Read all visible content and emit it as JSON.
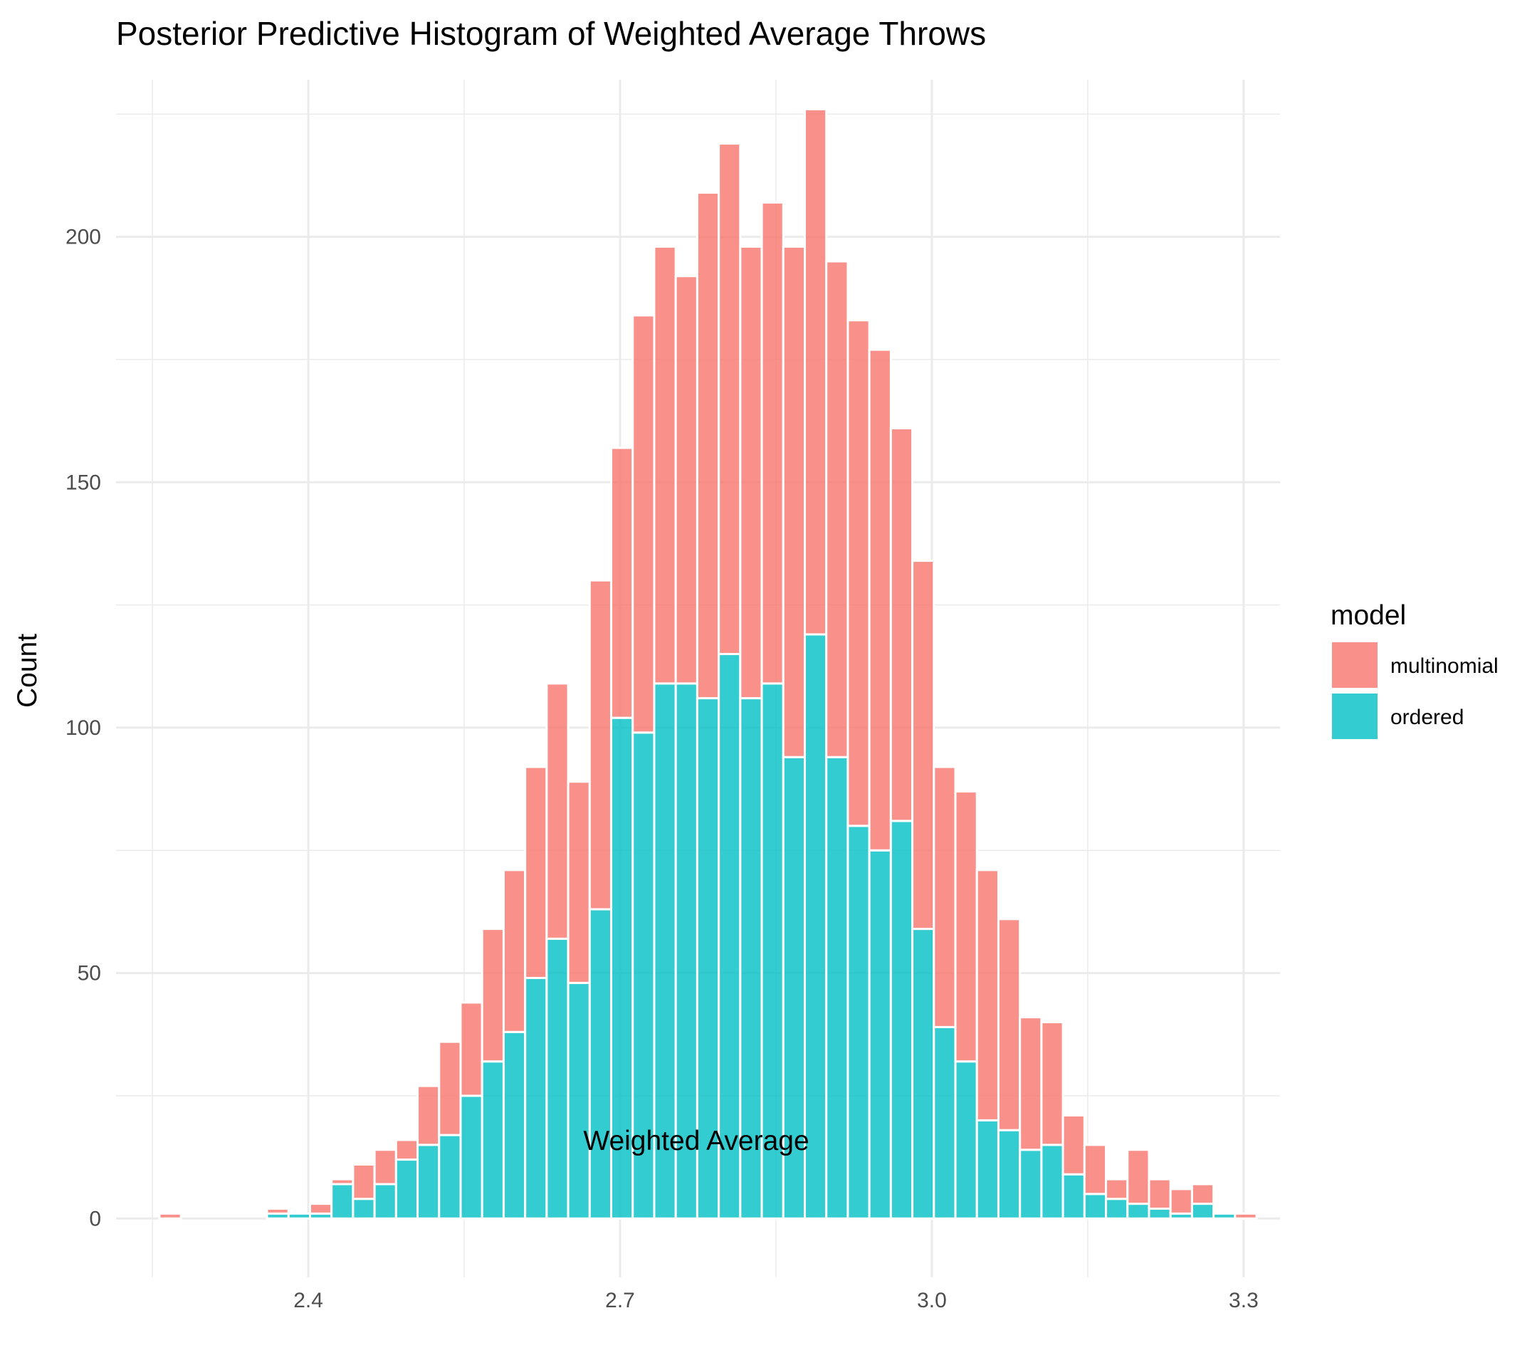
{
  "chart_data": {
    "type": "bar",
    "title": "Posterior Predictive Histogram of Weighted Average Throws",
    "xlabel": "Weighted Average",
    "ylabel": "Count",
    "xlim": [
      2.215,
      3.335
    ],
    "ylim": [
      -12,
      232
    ],
    "x_ticks": [
      2.4,
      2.7,
      3.0,
      3.3
    ],
    "x_tick_labels": [
      "2.4",
      "2.7",
      "3.0",
      "3.3"
    ],
    "y_ticks": [
      0,
      50,
      100,
      150,
      200
    ],
    "y_tick_labels": [
      "0",
      "50",
      "100",
      "150",
      "200"
    ],
    "grid": true,
    "bin_width": 0.0207,
    "legend": {
      "title": "model",
      "position": "right"
    },
    "colors": {
      "multinomial": "#f8766d",
      "ordered": "#00bfc4",
      "bar_outline": "#ffffff",
      "grid": "#ebebeb"
    },
    "stacked": true,
    "x": [
      2.2671,
      2.2878,
      2.3085,
      2.3292,
      2.3499,
      2.3706,
      2.3913,
      2.412,
      2.4327,
      2.4534,
      2.4741,
      2.4948,
      2.5155,
      2.5362,
      2.5569,
      2.5776,
      2.5983,
      2.619,
      2.6397,
      2.6604,
      2.6811,
      2.7018,
      2.7225,
      2.7432,
      2.7639,
      2.7846,
      2.8053,
      2.826,
      2.8467,
      2.8674,
      2.8881,
      2.9088,
      2.9295,
      2.9502,
      2.9709,
      2.9916,
      3.0123,
      3.033,
      3.0537,
      3.0744,
      3.0951,
      3.1158,
      3.1365,
      3.1572,
      3.1779,
      3.1986,
      3.2193,
      3.24,
      3.2607,
      3.2814,
      3.3021
    ],
    "series": [
      {
        "name": "multinomial",
        "values": [
          1,
          0,
          0,
          0,
          0,
          1,
          0,
          2,
          1,
          7,
          7,
          4,
          12,
          19,
          19,
          27,
          33,
          43,
          52,
          41,
          67,
          55,
          85,
          89,
          83,
          103,
          104,
          92,
          98,
          104,
          107,
          101,
          103,
          102,
          80,
          75,
          53,
          55,
          51,
          43,
          27,
          25,
          12,
          10,
          4,
          11,
          6,
          5,
          4,
          0,
          1
        ]
      },
      {
        "name": "ordered",
        "values": [
          0,
          0,
          0,
          0,
          0,
          1,
          1,
          1,
          7,
          4,
          7,
          12,
          15,
          17,
          25,
          32,
          38,
          49,
          57,
          48,
          63,
          102,
          99,
          109,
          109,
          106,
          115,
          106,
          109,
          94,
          119,
          94,
          80,
          75,
          81,
          59,
          39,
          32,
          20,
          18,
          14,
          15,
          9,
          5,
          4,
          3,
          2,
          1,
          3,
          1,
          0
        ]
      }
    ]
  }
}
